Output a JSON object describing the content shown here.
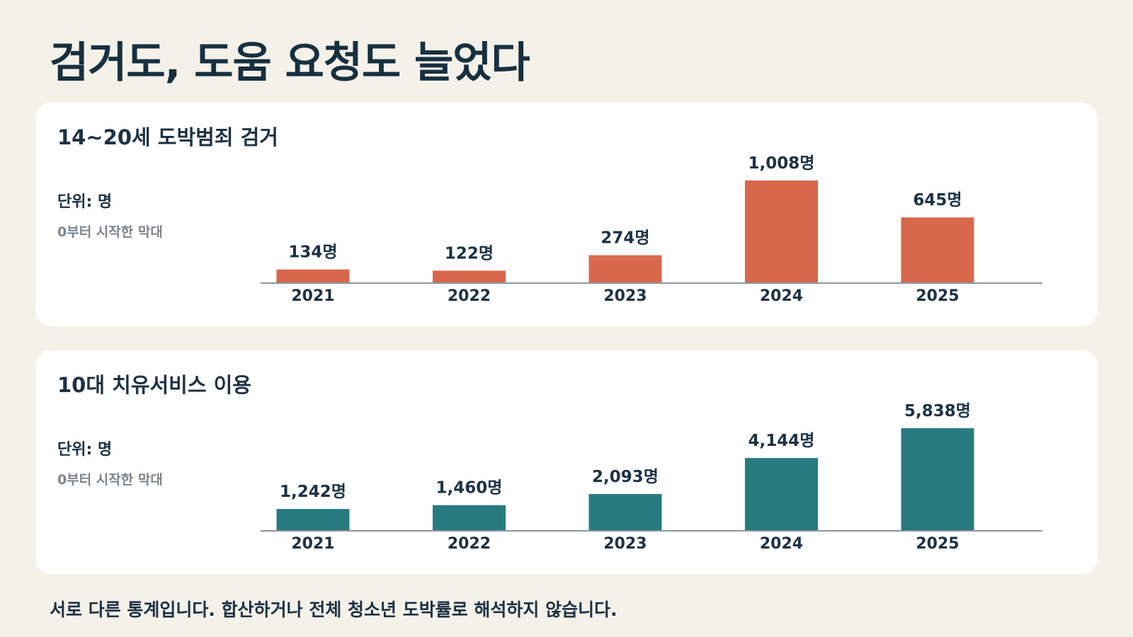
{
  "page": {
    "title": "검거도, 도움 요청도 늘었다",
    "footnote": "서로 다른 통계입니다. 합산하거나 전체 청소년 도박률로 해석하지 않습니다."
  },
  "colors": {
    "arrests_bar": "#d9674c",
    "services_bar": "#277b80",
    "axis": "#8c969f"
  },
  "chart_data": [
    {
      "type": "bar",
      "title": "14~20세 도박범죄 검거",
      "unit_label": "단위: 명",
      "axis_note": "0부터 시작한 막대",
      "categories": [
        "2021",
        "2022",
        "2023",
        "2024",
        "2025"
      ],
      "values": [
        134,
        122,
        274,
        1008,
        645
      ],
      "value_labels": [
        "134명",
        "122명",
        "274명",
        "1,008명",
        "645명"
      ],
      "ylim": [
        0,
        1008
      ],
      "color": "#d9674c"
    },
    {
      "type": "bar",
      "title": "10대 치유서비스 이용",
      "unit_label": "단위: 명",
      "axis_note": "0부터 시작한 막대",
      "categories": [
        "2021",
        "2022",
        "2023",
        "2024",
        "2025"
      ],
      "values": [
        1242,
        1460,
        2093,
        4144,
        5838
      ],
      "value_labels": [
        "1,242명",
        "1,460명",
        "2,093명",
        "4,144명",
        "5,838명"
      ],
      "ylim": [
        0,
        5838
      ],
      "color": "#277b80"
    }
  ]
}
